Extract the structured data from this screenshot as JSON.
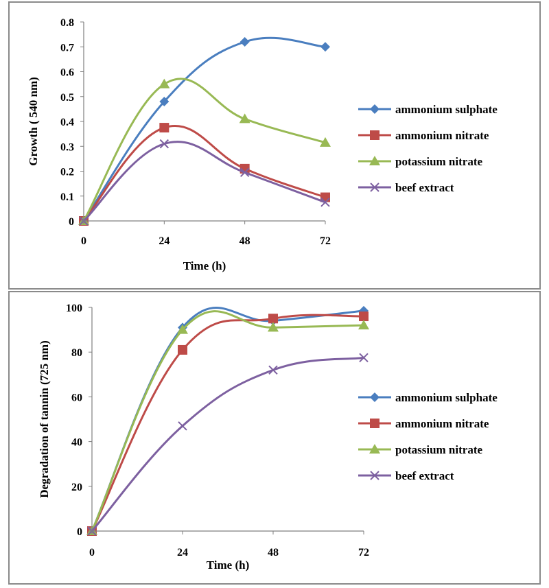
{
  "chart_data": [
    {
      "type": "line",
      "title": "",
      "xlabel": "Time (h)",
      "ylabel": "Growth ( 540 nm)",
      "x": [
        0,
        24,
        48,
        72
      ],
      "x_tick_labels": [
        "0",
        "24",
        "48",
        "72"
      ],
      "ylim": [
        0,
        0.8
      ],
      "y_ticks": [
        0,
        0.1,
        0.2,
        0.3,
        0.4,
        0.5,
        0.6,
        0.7,
        0.8
      ],
      "y_tick_labels": [
        "0",
        "0.1",
        "0.2",
        "0.3",
        "0.4",
        "0.5",
        "0.6",
        "0.7",
        "0.8"
      ],
      "smooth": true,
      "grid": false,
      "legend_position": "right",
      "series": [
        {
          "name": "ammonium sulphate",
          "values": [
            0,
            0.48,
            0.72,
            0.7
          ],
          "color": "#4a7ebf",
          "marker": "diamond"
        },
        {
          "name": "ammonium nitrate",
          "values": [
            0,
            0.375,
            0.21,
            0.095
          ],
          "color": "#be4b48",
          "marker": "square"
        },
        {
          "name": "potassium nitrate",
          "values": [
            0,
            0.55,
            0.41,
            0.315
          ],
          "color": "#98b954",
          "marker": "triangle"
        },
        {
          "name": "beef extract",
          "values": [
            0,
            0.31,
            0.195,
            0.075
          ],
          "color": "#7d60a0",
          "marker": "x"
        }
      ]
    },
    {
      "type": "line",
      "title": "",
      "xlabel": "Time (h)",
      "ylabel": "Degradation of tannin (725 nm)",
      "x": [
        0,
        24,
        48,
        72
      ],
      "x_tick_labels": [
        "0",
        "24",
        "48",
        "72"
      ],
      "ylim": [
        0,
        100
      ],
      "y_ticks": [
        0,
        20,
        40,
        60,
        80,
        100
      ],
      "y_tick_labels": [
        "0",
        "20",
        "40",
        "60",
        "80",
        "100"
      ],
      "smooth": true,
      "grid": false,
      "legend_position": "right",
      "series": [
        {
          "name": "ammonium sulphate",
          "values": [
            0,
            91,
            94,
            98.5
          ],
          "color": "#4a7ebf",
          "marker": "diamond"
        },
        {
          "name": "ammonium nitrate",
          "values": [
            0,
            81,
            95,
            96
          ],
          "color": "#be4b48",
          "marker": "square"
        },
        {
          "name": "potassium nitrate",
          "values": [
            0,
            90,
            91,
            92
          ],
          "color": "#98b954",
          "marker": "triangle"
        },
        {
          "name": "beef extract",
          "values": [
            0,
            47,
            72,
            77.5
          ],
          "color": "#7d60a0",
          "marker": "x"
        }
      ]
    }
  ]
}
